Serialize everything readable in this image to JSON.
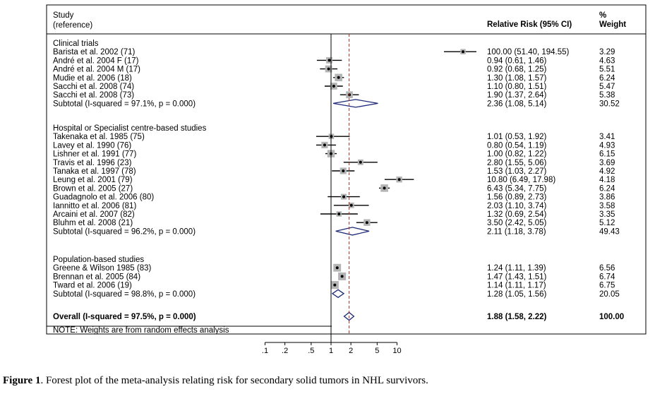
{
  "header": {
    "study_line1": "Study",
    "study_line2": "(reference)",
    "rr_label": "Relative Risk (95% CI)",
    "weight_line1": "%",
    "weight_line2": "Weight"
  },
  "footnote": "NOTE: Weights are from random effects analysis",
  "caption": {
    "label": "Figure 1",
    "text": ". Forest plot of the meta-analysis relating risk for secondary solid tumors in NHL survivors."
  },
  "colors": {
    "marker": "#000000",
    "weight_box": "#b4b4b4",
    "diamond": "#1f2a78",
    "overall_line": "#a0302a"
  },
  "chart_data": {
    "type": "forest",
    "x_scale": "log",
    "x_ticks": [
      0.1,
      0.2,
      0.5,
      1,
      2,
      5,
      10
    ],
    "x_tick_labels": [
      ".1",
      ".2",
      ".5",
      "1",
      "2",
      "5",
      "10"
    ],
    "null_value": 1,
    "overall_estimate": 1.88,
    "groups": [
      {
        "name": "Clinical trials",
        "studies": [
          {
            "label": "Barista et al. 2002 (71)",
            "rr": 100.0,
            "lo": 51.4,
            "hi": 194.55,
            "ci_text": "100.00 (51.40, 194.55)",
            "weight": "3.29"
          },
          {
            "label": "André et al. 2004 F (17)",
            "rr": 0.94,
            "lo": 0.61,
            "hi": 1.46,
            "ci_text": "0.94 (0.61, 1.46)",
            "weight": "4.63"
          },
          {
            "label": "André et al. 2004 M (17)",
            "rr": 0.92,
            "lo": 0.68,
            "hi": 1.25,
            "ci_text": "0.92 (0.68, 1.25)",
            "weight": "5.51"
          },
          {
            "label": "Mudie et al. 2006 (18)",
            "rr": 1.3,
            "lo": 1.08,
            "hi": 1.57,
            "ci_text": "1.30 (1.08, 1.57)",
            "weight": "6.24"
          },
          {
            "label": "Sacchi et al. 2008 (74)",
            "rr": 1.1,
            "lo": 0.8,
            "hi": 1.51,
            "ci_text": "1.10 (0.80, 1.51)",
            "weight": "5.47"
          },
          {
            "label": "Sacchi et al. 2008 (73)",
            "rr": 1.9,
            "lo": 1.37,
            "hi": 2.64,
            "ci_text": "1.90 (1.37, 2.64)",
            "weight": "5.38"
          }
        ],
        "subtotal": {
          "label": "Subtotal  (I-squared = 97.1%, p = 0.000)",
          "rr": 2.36,
          "lo": 1.08,
          "hi": 5.14,
          "ci_text": "2.36 (1.08, 5.14)",
          "weight": "30.52"
        }
      },
      {
        "name": "Hospital or Specialist centre-based studies",
        "studies": [
          {
            "label": "Takenaka et al. 1985 (75)",
            "rr": 1.01,
            "lo": 0.53,
            "hi": 1.92,
            "ci_text": "1.01 (0.53, 1.92)",
            "weight": "3.41"
          },
          {
            "label": "Lavey et al. 1990 (76)",
            "rr": 0.8,
            "lo": 0.54,
            "hi": 1.19,
            "ci_text": "0.80 (0.54, 1.19)",
            "weight": "4.93"
          },
          {
            "label": "Lishner et al. 1991 (77)",
            "rr": 1.0,
            "lo": 0.82,
            "hi": 1.22,
            "ci_text": "1.00 (0.82, 1.22)",
            "weight": "6.15"
          },
          {
            "label": "Travis et al. 1996 (23)",
            "rr": 2.8,
            "lo": 1.55,
            "hi": 5.06,
            "ci_text": "2.80 (1.55, 5.06)",
            "weight": "3.69"
          },
          {
            "label": "Tanaka et al. 1997 (78)",
            "rr": 1.53,
            "lo": 1.03,
            "hi": 2.27,
            "ci_text": "1.53 (1.03, 2.27)",
            "weight": "4.92"
          },
          {
            "label": "Leung et al. 2001 (79)",
            "rr": 10.8,
            "lo": 6.49,
            "hi": 17.98,
            "ci_text": "10.80 (6.49, 17.98)",
            "weight": "4.18"
          },
          {
            "label": "Brown et al. 2005 (27)",
            "rr": 6.43,
            "lo": 5.34,
            "hi": 7.75,
            "ci_text": "6.43 (5.34, 7.75)",
            "weight": "6.24"
          },
          {
            "label": "Guadagnolo et al. 2006 (80)",
            "rr": 1.56,
            "lo": 0.89,
            "hi": 2.73,
            "ci_text": "1.56 (0.89, 2.73)",
            "weight": "3.86"
          },
          {
            "label": "Iannitto et al. 2006 (81)",
            "rr": 2.03,
            "lo": 1.1,
            "hi": 3.74,
            "ci_text": "2.03 (1.10, 3.74)",
            "weight": "3.58"
          },
          {
            "label": "Arcaini et al. 2007 (82)",
            "rr": 1.32,
            "lo": 0.69,
            "hi": 2.54,
            "ci_text": "1.32 (0.69, 2.54)",
            "weight": "3.35"
          },
          {
            "label": "Bluhm et al. 2008 (21)",
            "rr": 3.5,
            "lo": 2.42,
            "hi": 5.05,
            "ci_text": "3.50 (2.42, 5.05)",
            "weight": "5.12"
          }
        ],
        "subtotal": {
          "label": "Subtotal  (I-squared = 96.2%, p = 0.000)",
          "rr": 2.11,
          "lo": 1.18,
          "hi": 3.78,
          "ci_text": "2.11 (1.18, 3.78)",
          "weight": "49.43"
        }
      },
      {
        "name": "Population-based studies",
        "studies": [
          {
            "label": "Greene & Wilson 1985 (83)",
            "rr": 1.24,
            "lo": 1.11,
            "hi": 1.39,
            "ci_text": "1.24 (1.11, 1.39)",
            "weight": "6.56"
          },
          {
            "label": "Brennan et al. 2005 (84)",
            "rr": 1.47,
            "lo": 1.43,
            "hi": 1.51,
            "ci_text": "1.47 (1.43, 1.51)",
            "weight": "6.74"
          },
          {
            "label": "Tward et al. 2006 (19)",
            "rr": 1.14,
            "lo": 1.11,
            "hi": 1.17,
            "ci_text": "1.14 (1.11, 1.17)",
            "weight": "6.75"
          }
        ],
        "subtotal": {
          "label": "Subtotal  (I-squared = 98.8%, p = 0.000)",
          "rr": 1.28,
          "lo": 1.05,
          "hi": 1.56,
          "ci_text": "1.28 (1.05, 1.56)",
          "weight": "20.05"
        }
      }
    ],
    "overall": {
      "label": "Overall  (I-squared = 97.5%, p = 0.000)",
      "rr": 1.88,
      "lo": 1.58,
      "hi": 2.22,
      "ci_text": "1.88 (1.58, 2.22)",
      "weight": "100.00"
    }
  }
}
